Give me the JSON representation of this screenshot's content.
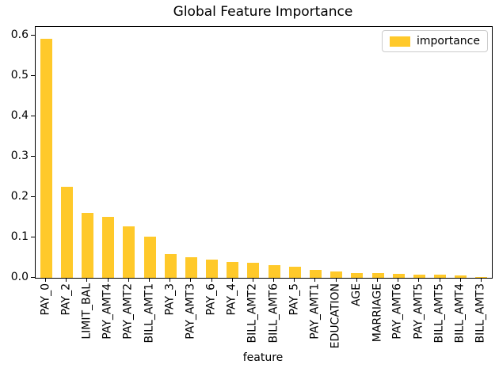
{
  "chart_data": {
    "type": "bar",
    "title": "Global Feature Importance",
    "xlabel": "feature",
    "ylabel": "",
    "legend": [
      {
        "label": "importance"
      }
    ],
    "legend_position": "upper right",
    "bar_color": "#FFC92A",
    "axis_color": "#000000",
    "legend_border_color": "#cccccc",
    "grid": false,
    "ylim": [
      0,
      0.622
    ],
    "yticks": [
      0.0,
      0.1,
      0.2,
      0.3,
      0.4,
      0.5,
      0.6
    ],
    "categories": [
      "PAY_0",
      "PAY_2",
      "LIMIT_BAL",
      "PAY_AMT4",
      "PAY_AMT2",
      "BILL_AMT1",
      "PAY_3",
      "PAY_AMT3",
      "PAY_6",
      "PAY_4",
      "BILL_AMT2",
      "BILL_AMT6",
      "PAY_5",
      "PAY_AMT1",
      "EDUCATION",
      "AGE",
      "MARRIAGE",
      "PAY_AMT6",
      "PAY_AMT5",
      "BILL_AMT5",
      "BILL_AMT4",
      "BILL_AMT3"
    ],
    "values": [
      0.593,
      0.225,
      0.16,
      0.151,
      0.127,
      0.102,
      0.059,
      0.051,
      0.046,
      0.04,
      0.038,
      0.032,
      0.028,
      0.02,
      0.015,
      0.012,
      0.011,
      0.01,
      0.008,
      0.008,
      0.005,
      0.001
    ]
  }
}
